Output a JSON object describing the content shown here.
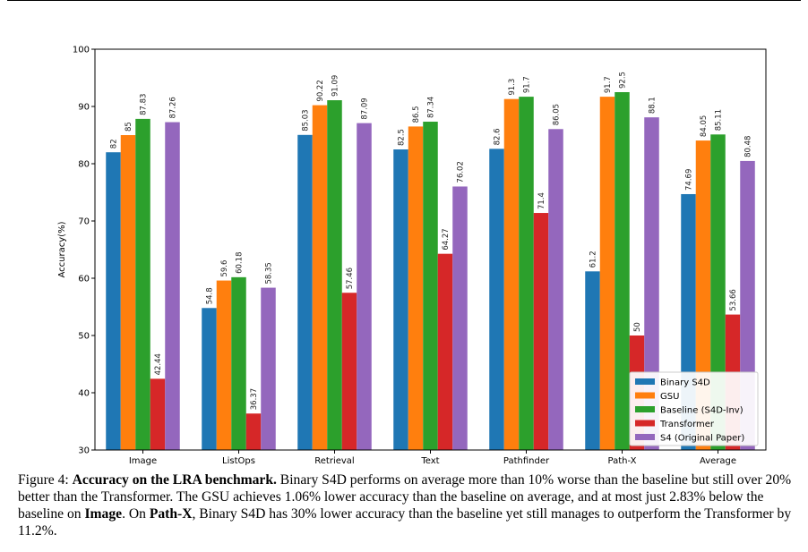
{
  "chart_data": {
    "type": "bar",
    "ylabel": "Accuracy(%)",
    "xlabel": "",
    "ylim": [
      30,
      100
    ],
    "yticks": [
      30,
      40,
      50,
      60,
      70,
      80,
      90,
      100
    ],
    "categories": [
      "Image",
      "ListOps",
      "Retrieval",
      "Text",
      "Pathfinder",
      "Path-X",
      "Average"
    ],
    "series": [
      {
        "name": "Binary S4D",
        "color": "#1f77b4",
        "values": [
          82,
          54.8,
          85.03,
          82.5,
          82.6,
          61.2,
          74.69
        ],
        "labels": [
          "82",
          "54.8",
          "85.03",
          "82.5",
          "82.6",
          "61.2",
          "74.69"
        ]
      },
      {
        "name": "GSU",
        "color": "#ff7f0e",
        "values": [
          85,
          59.6,
          90.22,
          86.5,
          91.3,
          91.7,
          84.05
        ],
        "labels": [
          "85",
          "59.6",
          "90.22",
          "86.5",
          "91.3",
          "91.7",
          "84.05"
        ]
      },
      {
        "name": "Baseline (S4D-Inv)",
        "color": "#2ca02c",
        "values": [
          87.83,
          60.18,
          91.09,
          87.34,
          91.7,
          92.5,
          85.11
        ],
        "labels": [
          "87.83",
          "60.18",
          "91.09",
          "87.34",
          "91.7",
          "92.5",
          "85.11"
        ]
      },
      {
        "name": "Transformer",
        "color": "#d62728",
        "values": [
          42.44,
          36.37,
          57.46,
          64.27,
          71.4,
          50,
          53.66
        ],
        "labels": [
          "42.44",
          "36.37",
          "57.46",
          "64.27",
          "71.4",
          "50",
          "53.66"
        ]
      },
      {
        "name": "S4 (Original Paper)",
        "color": "#9467bd",
        "values": [
          87.26,
          58.35,
          87.09,
          76.02,
          86.05,
          88.1,
          80.48
        ],
        "labels": [
          "87.26",
          "58.35",
          "87.09",
          "76.02",
          "86.05",
          "88.1",
          "80.48"
        ]
      }
    ],
    "legend_position": "lower-right",
    "grid": false
  },
  "caption": {
    "prefix": "Figure 4: ",
    "bold_title": "Accuracy on the LRA benchmark.",
    "text_1": " Binary S4D performs on average more than 10% worse than the baseline but still over 20% better than the Transformer. The GSU achieves 1.06% lower accuracy than the baseline on average, and at most just 2.83% below the baseline on ",
    "bold_image": "Image",
    "text_2": ". On ",
    "bold_pathx": "Path-X",
    "text_3": ", Binary S4D has 30% lower accuracy than the baseline yet still manages to outperform the Transformer by 11.2%."
  }
}
